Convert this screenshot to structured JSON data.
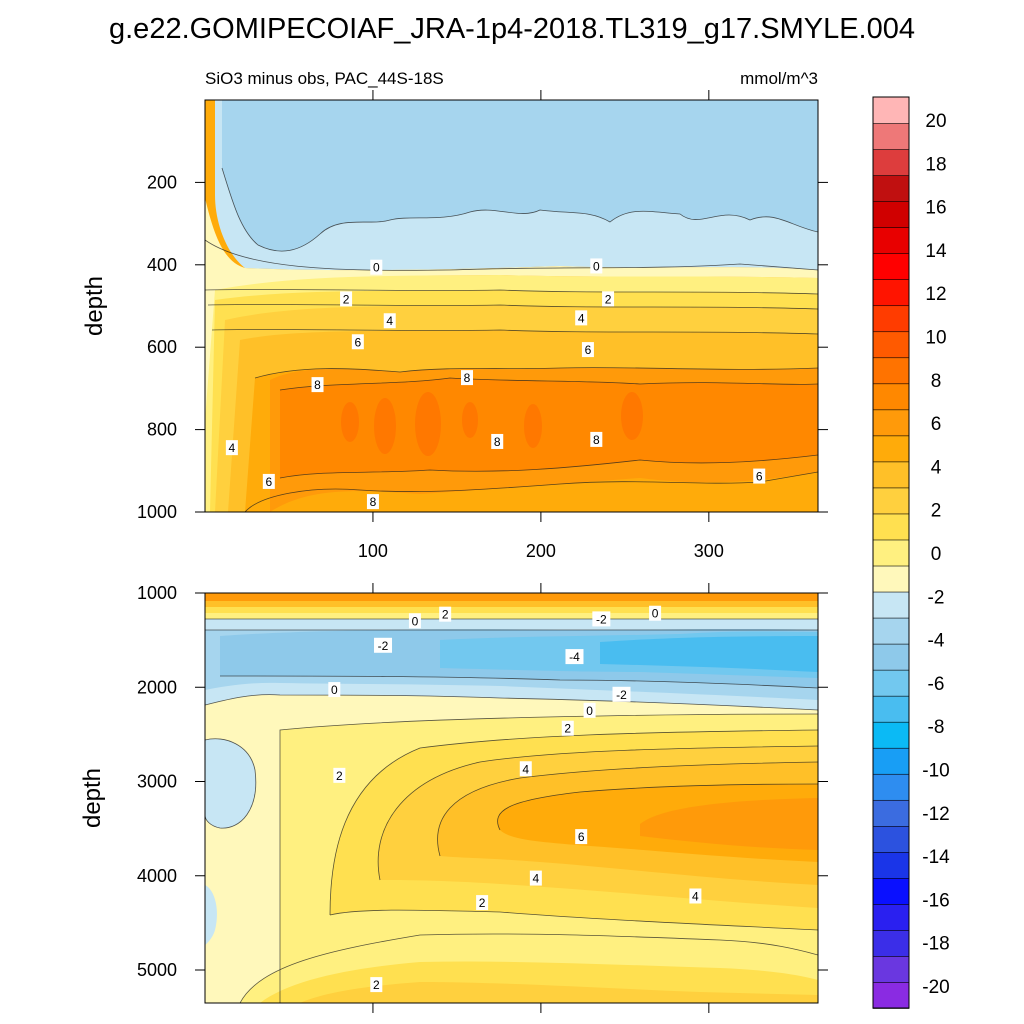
{
  "figure": {
    "title": "g.e22.GOMIPECOIAF_JRA-1p4-2018.TL319_g17.SMYLE.004"
  },
  "colors": {
    "background": "#ffffff",
    "axis": "#000000",
    "contour_line": "#222222",
    "colorbar_levels": [
      "#8a2be2",
      "#6a37e0",
      "#3b2ee8",
      "#2a20f0",
      "#0a10ff",
      "#1a35e8",
      "#2c52df",
      "#3b6ce0",
      "#2e8df0",
      "#189ef5",
      "#0bbaf5",
      "#49bdf0",
      "#72c8ef",
      "#8ec9ea",
      "#a6d5ee",
      "#c7e6f4",
      "#fff8bb",
      "#fff080",
      "#ffe050",
      "#ffd03e",
      "#ffc028",
      "#ffab0a",
      "#ff9a0a",
      "#ff8800",
      "#ff7300",
      "#ff5a00",
      "#ff3c00",
      "#ff1400",
      "#ff0000",
      "#e80000",
      "#d00000",
      "#c01010",
      "#dd3d3d",
      "#ee7878",
      "#ffb6b6"
    ]
  },
  "colorbar": {
    "labels": [
      "20",
      "18",
      "16",
      "14",
      "12",
      "10",
      "8",
      "6",
      "4",
      "2",
      "0",
      "-2",
      "-4",
      "-6",
      "-8",
      "-10",
      "-12",
      "-14",
      "-16",
      "-18",
      "-20"
    ]
  },
  "chart_data": [
    {
      "type": "heatmap",
      "panel": "top",
      "title": "SiO3 minus obs, PAC_44S-18S",
      "units": "mmol/m^3",
      "xlabel": "",
      "ylabel": "depth",
      "xlim": [
        0,
        365
      ],
      "ylim": [
        1000,
        0
      ],
      "x_ticks": [
        "100",
        "200",
        "300"
      ],
      "y_ticks": [
        "200",
        "400",
        "600",
        "800",
        "1000"
      ],
      "contour_interval": 1,
      "depth_profile": [
        {
          "depth": 0,
          "value": -1.5
        },
        {
          "depth": 200,
          "value": -1.3
        },
        {
          "depth": 320,
          "value": -0.8
        },
        {
          "depth": 400,
          "value": 0
        },
        {
          "depth": 450,
          "value": 1.2
        },
        {
          "depth": 500,
          "value": 2.4
        },
        {
          "depth": 550,
          "value": 3.8
        },
        {
          "depth": 600,
          "value": 5.2
        },
        {
          "depth": 650,
          "value": 6.5
        },
        {
          "depth": 700,
          "value": 7.8
        },
        {
          "depth": 760,
          "value": 8.6
        },
        {
          "depth": 800,
          "value": 8.9
        },
        {
          "depth": 850,
          "value": 8.4
        },
        {
          "depth": 900,
          "value": 7.9
        },
        {
          "depth": 950,
          "value": 7.4
        },
        {
          "depth": 1000,
          "value": 7.0
        }
      ],
      "contour_labels": [
        {
          "text": "0",
          "x": 102,
          "depth": 407
        },
        {
          "text": "0",
          "x": 233,
          "depth": 404
        },
        {
          "text": "2",
          "x": 84,
          "depth": 484
        },
        {
          "text": "2",
          "x": 240,
          "depth": 484
        },
        {
          "text": "4",
          "x": 110,
          "depth": 537
        },
        {
          "text": "4",
          "x": 224,
          "depth": 530
        },
        {
          "text": "6",
          "x": 91,
          "depth": 588
        },
        {
          "text": "6",
          "x": 228,
          "depth": 607
        },
        {
          "text": "8",
          "x": 67,
          "depth": 692
        },
        {
          "text": "8",
          "x": 156,
          "depth": 675
        },
        {
          "text": "8",
          "x": 174,
          "depth": 830
        },
        {
          "text": "8",
          "x": 233,
          "depth": 825
        },
        {
          "text": "4",
          "x": 16,
          "depth": 845
        },
        {
          "text": "6",
          "x": 38,
          "depth": 927
        },
        {
          "text": "6",
          "x": 330,
          "depth": 914
        },
        {
          "text": "8",
          "x": 100,
          "depth": 976
        }
      ]
    },
    {
      "type": "heatmap",
      "panel": "bottom",
      "title": "",
      "units": "mmol/m^3",
      "xlabel": "",
      "ylabel": "depth",
      "xlim": [
        0,
        365
      ],
      "ylim": [
        5350,
        1000
      ],
      "x_ticks": [],
      "y_ticks": [
        "1000",
        "2000",
        "3000",
        "4000",
        "5000"
      ],
      "contour_interval": 0.5,
      "contour_labels": [
        {
          "text": "2",
          "x": 143,
          "depth": 1230
        },
        {
          "text": "0",
          "x": 125,
          "depth": 1300
        },
        {
          "text": "-2",
          "x": 236,
          "depth": 1280
        },
        {
          "text": "0",
          "x": 268,
          "depth": 1220
        },
        {
          "text": "-2",
          "x": 106,
          "depth": 1560
        },
        {
          "text": "-4",
          "x": 220,
          "depth": 1680
        },
        {
          "text": "0",
          "x": 77,
          "depth": 2030
        },
        {
          "text": "-2",
          "x": 248,
          "depth": 2080
        },
        {
          "text": "0",
          "x": 229,
          "depth": 2250
        },
        {
          "text": "2",
          "x": 216,
          "depth": 2440
        },
        {
          "text": "4",
          "x": 191,
          "depth": 2870
        },
        {
          "text": "2",
          "x": 80,
          "depth": 2940
        },
        {
          "text": "6",
          "x": 224,
          "depth": 3590
        },
        {
          "text": "4",
          "x": 197,
          "depth": 4030
        },
        {
          "text": "2",
          "x": 165,
          "depth": 4290
        },
        {
          "text": "4",
          "x": 292,
          "depth": 4220
        },
        {
          "text": "2",
          "x": 102,
          "depth": 5160
        }
      ]
    }
  ]
}
